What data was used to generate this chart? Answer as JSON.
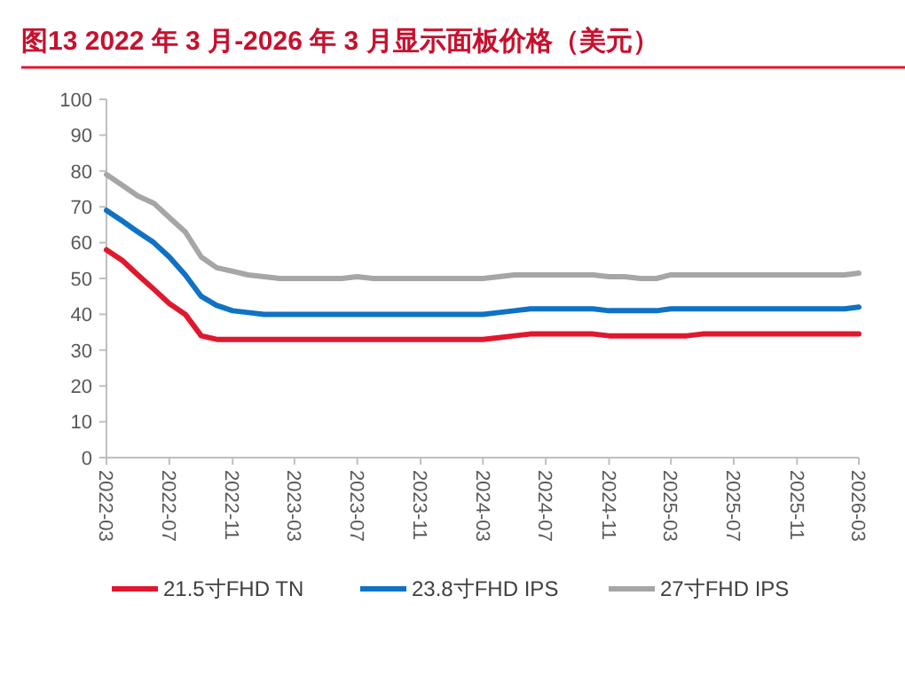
{
  "chart_data": {
    "type": "line",
    "title": "图13  2022 年 3 月-2026 年 3 月显示面板价格（美元）",
    "x": [
      "2022-03",
      "2022-04",
      "2022-05",
      "2022-06",
      "2022-07",
      "2022-08",
      "2022-09",
      "2022-10",
      "2022-11",
      "2022-12",
      "2023-01",
      "2023-02",
      "2023-03",
      "2023-04",
      "2023-05",
      "2023-06",
      "2023-07",
      "2023-08",
      "2023-09",
      "2023-10",
      "2023-11",
      "2023-12",
      "2024-01",
      "2024-02",
      "2024-03",
      "2024-04",
      "2024-05",
      "2024-06",
      "2024-07",
      "2024-08",
      "2024-09",
      "2024-10",
      "2024-11",
      "2024-12",
      "2025-01",
      "2025-02",
      "2025-03",
      "2025-04",
      "2025-05",
      "2025-06",
      "2025-07",
      "2025-08",
      "2025-09",
      "2025-10",
      "2025-11",
      "2025-12",
      "2026-01",
      "2026-02",
      "2026-03"
    ],
    "series": [
      {
        "name": "21.5寸FHD TN",
        "color": "#e0182d",
        "values": [
          58,
          55,
          51,
          47,
          43,
          40,
          34,
          33,
          33,
          33,
          33,
          33,
          33,
          33,
          33,
          33,
          33,
          33,
          33,
          33,
          33,
          33,
          33,
          33,
          33,
          33.5,
          34,
          34.5,
          34.5,
          34.5,
          34.5,
          34.5,
          34,
          34,
          34,
          34,
          34,
          34,
          34.5,
          34.5,
          34.5,
          34.5,
          34.5,
          34.5,
          34.5,
          34.5,
          34.5,
          34.5,
          34.5
        ]
      },
      {
        "name": "23.8寸FHD IPS",
        "color": "#0f72c4",
        "values": [
          69,
          66,
          63,
          60,
          56,
          51,
          45,
          42.5,
          41,
          40.5,
          40,
          40,
          40,
          40,
          40,
          40,
          40,
          40,
          40,
          40,
          40,
          40,
          40,
          40,
          40,
          40.5,
          41,
          41.5,
          41.5,
          41.5,
          41.5,
          41.5,
          41,
          41,
          41,
          41,
          41.5,
          41.5,
          41.5,
          41.5,
          41.5,
          41.5,
          41.5,
          41.5,
          41.5,
          41.5,
          41.5,
          41.5,
          42
        ]
      },
      {
        "name": "27寸FHD IPS",
        "color": "#a6a6a6",
        "values": [
          79,
          76,
          73,
          71,
          67,
          63,
          56,
          53,
          52,
          51,
          50.5,
          50,
          50,
          50,
          50,
          50,
          50.5,
          50,
          50,
          50,
          50,
          50,
          50,
          50,
          50,
          50.5,
          51,
          51,
          51,
          51,
          51,
          51,
          50.5,
          50.5,
          50,
          50,
          51,
          51,
          51,
          51,
          51,
          51,
          51,
          51,
          51,
          51,
          51,
          51,
          51.5
        ]
      }
    ],
    "xlim": [
      "2022-03",
      "2026-03"
    ],
    "xticks": [
      "2022-03",
      "2022-07",
      "2022-11",
      "2023-03",
      "2023-07",
      "2023-11",
      "2024-03",
      "2024-07",
      "2024-11",
      "2025-03",
      "2025-07",
      "2025-11",
      "2026-03"
    ],
    "ylim": [
      0,
      100
    ],
    "yticks": [
      0,
      10,
      20,
      30,
      40,
      50,
      60,
      70,
      80,
      90,
      100
    ],
    "grid": false,
    "legend": "bottom",
    "marker": "none",
    "line_style": "solid"
  }
}
